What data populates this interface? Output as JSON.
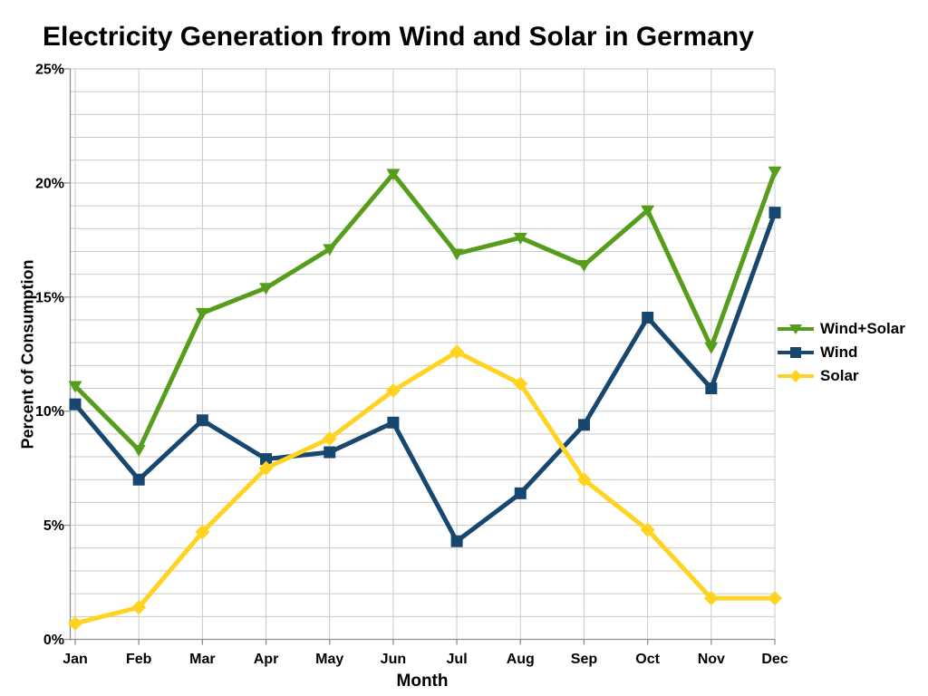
{
  "chart_data": {
    "type": "line",
    "title": "Electricity Generation from Wind and Solar in Germany",
    "xlabel": "Month",
    "ylabel": "Percent of Consumption",
    "categories": [
      "Jan",
      "Feb",
      "Mar",
      "Apr",
      "May",
      "Jun",
      "Jul",
      "Aug",
      "Sep",
      "Oct",
      "Nov",
      "Dec"
    ],
    "series": [
      {
        "name": "Wind+Solar",
        "color": "#579D1C",
        "marker": "triangle-down",
        "values": [
          11.1,
          8.3,
          14.3,
          15.4,
          17.1,
          20.4,
          16.9,
          17.6,
          16.4,
          18.8,
          12.8,
          20.5
        ]
      },
      {
        "name": "Wind",
        "color": "#17466F",
        "marker": "square",
        "values": [
          10.3,
          7.0,
          9.6,
          7.9,
          8.2,
          9.5,
          4.3,
          6.4,
          9.4,
          14.1,
          11.0,
          18.7
        ]
      },
      {
        "name": "Solar",
        "color": "#FFD320",
        "marker": "diamond",
        "values": [
          0.7,
          1.4,
          4.7,
          7.5,
          8.8,
          10.9,
          12.6,
          11.2,
          7.0,
          4.8,
          1.8,
          1.8
        ]
      }
    ],
    "ylim": [
      0,
      25
    ],
    "ytick_major": 5,
    "ytick_minor": 1,
    "ytick_labels": [
      "0%",
      "5%",
      "10%",
      "15%",
      "20%",
      "25%"
    ],
    "grid": "on",
    "legend_position": "right",
    "grid_color": "#C9C9C9",
    "axis_color": "#8E8E8E",
    "text_color": "#000000",
    "background_color": "#FFFFFF"
  }
}
